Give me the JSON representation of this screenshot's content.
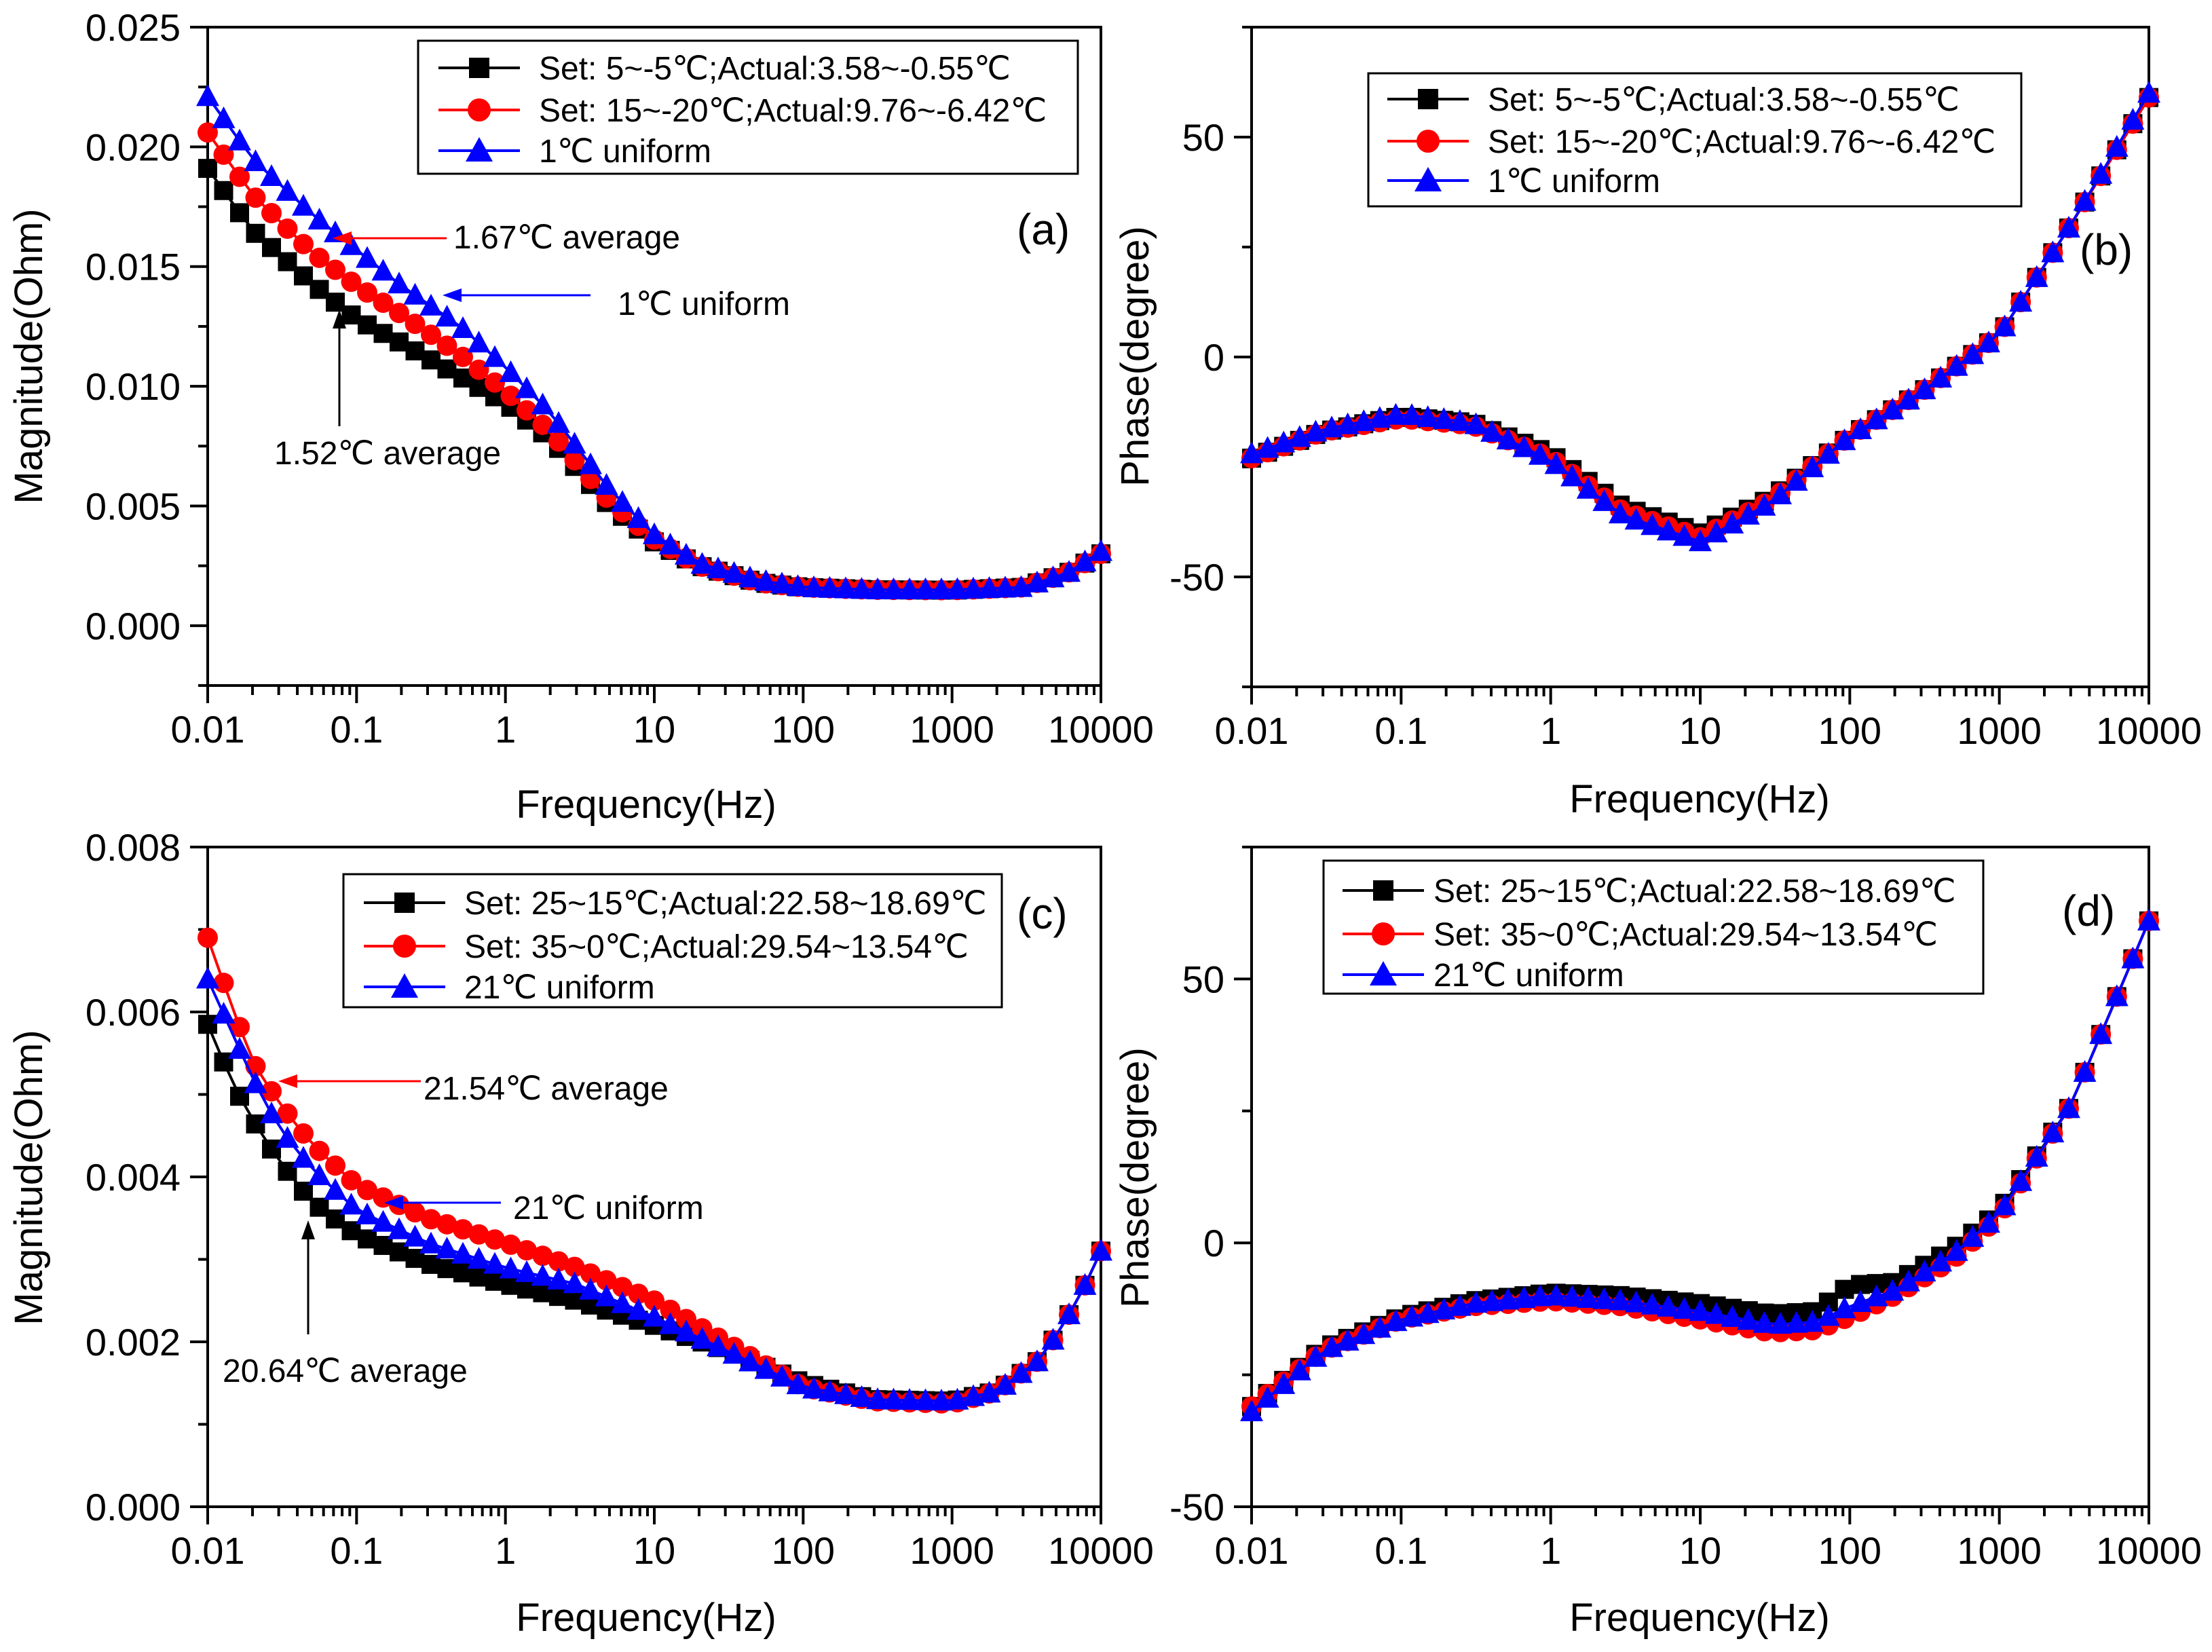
{
  "colors": {
    "black": "#000000",
    "red": "#ff0000",
    "blue": "#0000ff"
  },
  "chart_data": [
    {
      "id": "a",
      "type": "line",
      "panel_label": "(a)",
      "xlabel": "Frequency(Hz)",
      "ylabel": "Magnitude(Ohm)",
      "xscale": "log",
      "xlim": [
        0.01,
        10000
      ],
      "ylim": [
        -0.0025,
        0.025
      ],
      "xticks": [
        0.01,
        0.1,
        1,
        10,
        100,
        1000,
        10000
      ],
      "xtick_labels": [
        "0.01",
        "0.1",
        "1",
        "10",
        "100",
        "1000",
        "10000"
      ],
      "yticks": [
        0,
        0.005,
        0.01,
        0.015,
        0.02,
        0.025
      ],
      "ytick_labels": [
        "0.000",
        "0.005",
        "0.010",
        "0.015",
        "0.020",
        "0.025"
      ],
      "legend_position": "top-right",
      "series": [
        {
          "name": "Set: 5~-5℃;Actual:3.58~-0.55℃",
          "color": "#000000",
          "marker": "square",
          "anchors": [
            [
              0.01,
              0.0191
            ],
            [
              0.02,
              0.0165
            ],
            [
              0.05,
              0.0143
            ],
            [
              0.1,
              0.0128
            ],
            [
              0.2,
              0.0118
            ],
            [
              0.5,
              0.0104
            ],
            [
              1,
              0.0093
            ],
            [
              2,
              0.0078
            ],
            [
              5,
              0.005
            ],
            [
              10,
              0.0035
            ],
            [
              20,
              0.0025
            ],
            [
              50,
              0.0018
            ],
            [
              100,
              0.0016
            ],
            [
              300,
              0.0015
            ],
            [
              1000,
              0.00148
            ],
            [
              3000,
              0.0016
            ],
            [
              6000,
              0.0022
            ],
            [
              10000,
              0.003
            ]
          ]
        },
        {
          "name": "Set: 15~-20℃;Actual:9.76~-6.42℃",
          "color": "#ff0000",
          "marker": "circle",
          "anchors": [
            [
              0.01,
              0.0206
            ],
            [
              0.02,
              0.018
            ],
            [
              0.05,
              0.0156
            ],
            [
              0.1,
              0.0142
            ],
            [
              0.2,
              0.013
            ],
            [
              0.5,
              0.0113
            ],
            [
              1,
              0.0098
            ],
            [
              2,
              0.0081
            ],
            [
              5,
              0.0052
            ],
            [
              10,
              0.0036
            ],
            [
              20,
              0.0025
            ],
            [
              50,
              0.0018
            ],
            [
              100,
              0.0016
            ],
            [
              300,
              0.0015
            ],
            [
              1000,
              0.00148
            ],
            [
              3000,
              0.0016
            ],
            [
              6000,
              0.0022
            ],
            [
              10000,
              0.003
            ]
          ]
        },
        {
          "name": "1℃ uniform",
          "color": "#0000ff",
          "marker": "triangle",
          "anchors": [
            [
              0.01,
              0.0221
            ],
            [
              0.02,
              0.0195
            ],
            [
              0.05,
              0.0172
            ],
            [
              0.1,
              0.0157
            ],
            [
              0.2,
              0.0142
            ],
            [
              0.5,
              0.0125
            ],
            [
              1,
              0.0108
            ],
            [
              2,
              0.0089
            ],
            [
              5,
              0.0057
            ],
            [
              10,
              0.0038
            ],
            [
              20,
              0.0026
            ],
            [
              50,
              0.0019
            ],
            [
              100,
              0.0016
            ],
            [
              300,
              0.0015
            ],
            [
              1000,
              0.0015
            ],
            [
              3000,
              0.0016
            ],
            [
              6000,
              0.0022
            ],
            [
              10000,
              0.0031
            ]
          ]
        }
      ],
      "annotations": [
        {
          "text": "1.67℃ average",
          "color": "#ff0000"
        },
        {
          "text": "1℃ uniform",
          "color": "#0000ff"
        },
        {
          "text": "1.52℃ average",
          "color": "#000000"
        }
      ]
    },
    {
      "id": "b",
      "type": "line",
      "panel_label": "(b)",
      "xlabel": "Frequency(Hz)",
      "ylabel": "Phase(degree)",
      "xscale": "log",
      "xlim": [
        0.01,
        10000
      ],
      "ylim": [
        -75,
        75
      ],
      "xticks": [
        0.01,
        0.1,
        1,
        10,
        100,
        1000,
        10000
      ],
      "xtick_labels": [
        "0.01",
        "0.1",
        "1",
        "10",
        "100",
        "1000",
        "10000"
      ],
      "yticks": [
        -50,
        0,
        50
      ],
      "ytick_labels": [
        "-50",
        "0",
        "50"
      ],
      "legend_position": "top-left",
      "series": [
        {
          "name": "Set: 5~-5℃;Actual:3.58~-0.55℃",
          "color": "#000000",
          "marker": "square",
          "anchors": [
            [
              0.01,
              -23
            ],
            [
              0.03,
              -17
            ],
            [
              0.1,
              -13.5
            ],
            [
              0.3,
              -15
            ],
            [
              1,
              -22
            ],
            [
              3,
              -34
            ],
            [
              10,
              -40
            ],
            [
              30,
              -32
            ],
            [
              100,
              -18
            ],
            [
              300,
              -8
            ],
            [
              1000,
              5
            ],
            [
              3000,
              30
            ],
            [
              10000,
              59
            ]
          ]
        },
        {
          "name": "Set: 15~-20℃;Actual:9.76~-6.42℃",
          "color": "#ff0000",
          "marker": "circle",
          "anchors": [
            [
              0.01,
              -23
            ],
            [
              0.03,
              -17
            ],
            [
              0.1,
              -14
            ],
            [
              0.3,
              -15.5
            ],
            [
              1,
              -23
            ],
            [
              3,
              -35
            ],
            [
              10,
              -41
            ],
            [
              30,
              -32.5
            ],
            [
              100,
              -18
            ],
            [
              300,
              -8
            ],
            [
              1000,
              5
            ],
            [
              3000,
              30
            ],
            [
              10000,
              59
            ]
          ]
        },
        {
          "name": "1℃ uniform",
          "color": "#0000ff",
          "marker": "triangle",
          "anchors": [
            [
              0.01,
              -22
            ],
            [
              0.03,
              -16.5
            ],
            [
              0.1,
              -13
            ],
            [
              0.3,
              -15
            ],
            [
              1,
              -23.5
            ],
            [
              3,
              -36
            ],
            [
              10,
              -42
            ],
            [
              30,
              -33
            ],
            [
              100,
              -18
            ],
            [
              300,
              -8
            ],
            [
              1000,
              5
            ],
            [
              3000,
              30
            ],
            [
              10000,
              60
            ]
          ]
        }
      ]
    },
    {
      "id": "c",
      "type": "line",
      "panel_label": "(c)",
      "xlabel": "Frequency(Hz)",
      "ylabel": "Magnitude(Ohm)",
      "xscale": "log",
      "xlim": [
        0.01,
        10000
      ],
      "ylim": [
        0,
        0.008
      ],
      "xticks": [
        0.01,
        0.1,
        1,
        10,
        100,
        1000,
        10000
      ],
      "xtick_labels": [
        "0.01",
        "0.1",
        "1",
        "10",
        "100",
        "1000",
        "10000"
      ],
      "yticks": [
        0,
        0.002,
        0.004,
        0.006,
        0.008
      ],
      "ytick_labels": [
        "0.000",
        "0.002",
        "0.004",
        "0.006",
        "0.008"
      ],
      "legend_position": "top-right",
      "series": [
        {
          "name": "Set: 25~15℃;Actual:22.58~18.69℃",
          "color": "#000000",
          "marker": "square",
          "anchors": [
            [
              0.01,
              0.00585
            ],
            [
              0.015,
              0.0051
            ],
            [
              0.02,
              0.0047
            ],
            [
              0.03,
              0.0042
            ],
            [
              0.05,
              0.0037
            ],
            [
              0.1,
              0.0033
            ],
            [
              0.3,
              0.00295
            ],
            [
              1,
              0.0027
            ],
            [
              3,
              0.0025
            ],
            [
              10,
              0.0022
            ],
            [
              30,
              0.0019
            ],
            [
              100,
              0.0015
            ],
            [
              300,
              0.0013
            ],
            [
              1000,
              0.00128
            ],
            [
              2000,
              0.0014
            ],
            [
              4000,
              0.0018
            ],
            [
              7000,
              0.0025
            ],
            [
              10000,
              0.0031
            ]
          ]
        },
        {
          "name": "Set: 35~0℃;Actual:29.54~13.54℃",
          "color": "#ff0000",
          "marker": "circle",
          "anchors": [
            [
              0.01,
              0.0069
            ],
            [
              0.015,
              0.006
            ],
            [
              0.02,
              0.0054
            ],
            [
              0.03,
              0.0049
            ],
            [
              0.05,
              0.0044
            ],
            [
              0.1,
              0.0039
            ],
            [
              0.3,
              0.0035
            ],
            [
              1,
              0.0032
            ],
            [
              3,
              0.0029
            ],
            [
              10,
              0.0025
            ],
            [
              30,
              0.002
            ],
            [
              100,
              0.00145
            ],
            [
              300,
              0.00128
            ],
            [
              1000,
              0.00125
            ],
            [
              2000,
              0.0014
            ],
            [
              4000,
              0.0018
            ],
            [
              7000,
              0.0025
            ],
            [
              10000,
              0.0031
            ]
          ]
        },
        {
          "name": "21℃ uniform",
          "color": "#0000ff",
          "marker": "triangle",
          "anchors": [
            [
              0.01,
              0.0064
            ],
            [
              0.015,
              0.0057
            ],
            [
              0.02,
              0.0052
            ],
            [
              0.03,
              0.0046
            ],
            [
              0.05,
              0.0041
            ],
            [
              0.1,
              0.0036
            ],
            [
              0.3,
              0.0032
            ],
            [
              1,
              0.0029
            ],
            [
              3,
              0.0027
            ],
            [
              10,
              0.0023
            ],
            [
              30,
              0.0019
            ],
            [
              100,
              0.00145
            ],
            [
              300,
              0.0013
            ],
            [
              1000,
              0.00128
            ],
            [
              2000,
              0.0014
            ],
            [
              4000,
              0.0018
            ],
            [
              7000,
              0.0025
            ],
            [
              10000,
              0.0031
            ]
          ]
        }
      ],
      "annotations": [
        {
          "text": "21.54℃ average",
          "color": "#ff0000"
        },
        {
          "text": "21℃ uniform",
          "color": "#0000ff"
        },
        {
          "text": "20.64℃ average",
          "color": "#000000"
        }
      ]
    },
    {
      "id": "d",
      "type": "line",
      "panel_label": "(d)",
      "xlabel": "Frequency(Hz)",
      "ylabel": "Phase(degree)",
      "xscale": "log",
      "xlim": [
        0.01,
        10000
      ],
      "ylim": [
        -50,
        75
      ],
      "xticks": [
        0.01,
        0.1,
        1,
        10,
        100,
        1000,
        10000
      ],
      "xtick_labels": [
        "0.01",
        "0.1",
        "1",
        "10",
        "100",
        "1000",
        "10000"
      ],
      "yticks": [
        -50,
        0,
        50
      ],
      "ytick_labels": [
        "-50",
        "0",
        "50"
      ],
      "legend_position": "top-left",
      "series": [
        {
          "name": "Set: 25~15℃;Actual:22.58~18.69℃",
          "color": "#000000",
          "marker": "square",
          "anchors": [
            [
              0.01,
              -31
            ],
            [
              0.03,
              -20
            ],
            [
              0.1,
              -14
            ],
            [
              0.3,
              -11
            ],
            [
              1,
              -9.5
            ],
            [
              3,
              -10
            ],
            [
              10,
              -11.5
            ],
            [
              30,
              -13.5
            ],
            [
              60,
              -13
            ],
            [
              100,
              -8
            ],
            [
              200,
              -7.5
            ],
            [
              500,
              -1
            ],
            [
              1000,
              6
            ],
            [
              3000,
              26
            ],
            [
              10000,
              61
            ]
          ]
        },
        {
          "name": "Set: 35~0℃;Actual:29.54~13.54℃",
          "color": "#ff0000",
          "marker": "circle",
          "anchors": [
            [
              0.01,
              -31
            ],
            [
              0.03,
              -20.5
            ],
            [
              0.1,
              -14.5
            ],
            [
              0.3,
              -12
            ],
            [
              1,
              -11
            ],
            [
              3,
              -12
            ],
            [
              10,
              -14.5
            ],
            [
              30,
              -17
            ],
            [
              60,
              -16.5
            ],
            [
              100,
              -14
            ],
            [
              200,
              -10
            ],
            [
              500,
              -3
            ],
            [
              1000,
              5
            ],
            [
              3000,
              26
            ],
            [
              10000,
              61
            ]
          ]
        },
        {
          "name": "21℃ uniform",
          "color": "#0000ff",
          "marker": "triangle",
          "anchors": [
            [
              0.01,
              -32
            ],
            [
              0.03,
              -20.5
            ],
            [
              0.1,
              -14.5
            ],
            [
              0.3,
              -11.5
            ],
            [
              1,
              -10
            ],
            [
              3,
              -11
            ],
            [
              10,
              -13
            ],
            [
              30,
              -15.5
            ],
            [
              60,
              -15
            ],
            [
              100,
              -12
            ],
            [
              200,
              -9
            ],
            [
              500,
              -2
            ],
            [
              1000,
              5.5
            ],
            [
              3000,
              26
            ],
            [
              10000,
              61
            ]
          ]
        }
      ]
    }
  ]
}
